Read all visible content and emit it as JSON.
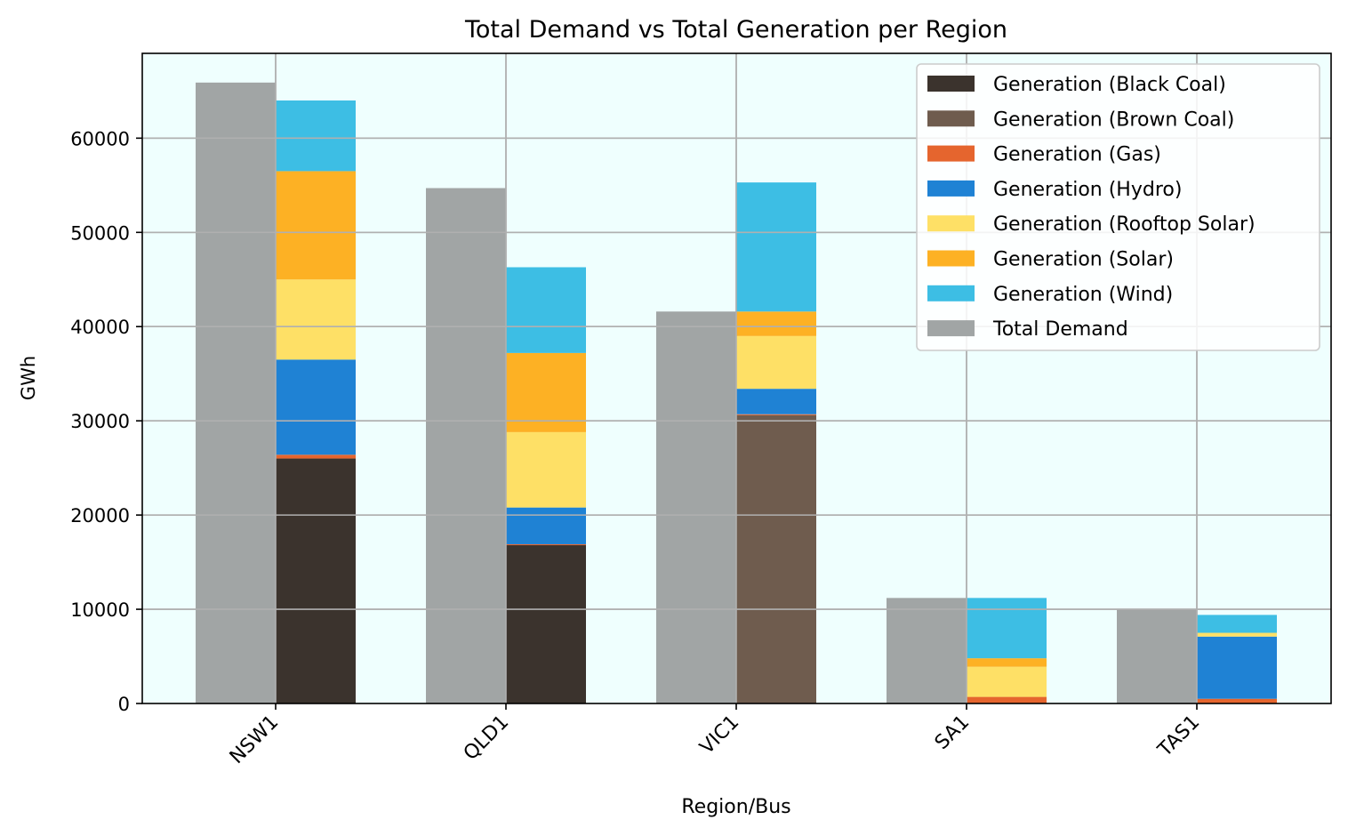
{
  "chart_data": {
    "type": "bar",
    "title": "Total Demand vs Total Generation per Region",
    "xlabel": "Region/Bus",
    "ylabel": "GWh",
    "ylim": [
      0,
      69000
    ],
    "yticks": [
      0,
      10000,
      20000,
      30000,
      40000,
      50000,
      60000
    ],
    "grid": true,
    "legend_position": "top-right",
    "categories": [
      "NSW1",
      "QLD1",
      "VIC1",
      "SA1",
      "TAS1"
    ],
    "demand": {
      "name": "Total Demand",
      "color": "#a1a5a5",
      "values": [
        65900,
        54700,
        41600,
        11200,
        10000
      ]
    },
    "generation_series": [
      {
        "name": "Generation (Black Coal)",
        "color": "#3b332d",
        "values": [
          26000,
          16800,
          0,
          0,
          0
        ]
      },
      {
        "name": "Generation (Brown Coal)",
        "color": "#6f5c4e",
        "values": [
          0,
          0,
          30600,
          0,
          0
        ]
      },
      {
        "name": "Generation (Gas)",
        "color": "#e5652e",
        "values": [
          400,
          100,
          100,
          700,
          500
        ]
      },
      {
        "name": "Generation (Hydro)",
        "color": "#1f82d4",
        "values": [
          10100,
          3900,
          2700,
          0,
          6600
        ]
      },
      {
        "name": "Generation (Rooftop Solar)",
        "color": "#fee066",
        "values": [
          8500,
          8000,
          5600,
          3200,
          400
        ]
      },
      {
        "name": "Generation (Solar)",
        "color": "#fdb124",
        "values": [
          11500,
          8400,
          2600,
          900,
          0
        ]
      },
      {
        "name": "Generation (Wind)",
        "color": "#3dbee4",
        "values": [
          7500,
          9100,
          13700,
          6400,
          1900
        ]
      }
    ],
    "legend": [
      "Generation (Black Coal)",
      "Generation (Brown Coal)",
      "Generation (Gas)",
      "Generation (Hydro)",
      "Generation (Rooftop Solar)",
      "Generation (Solar)",
      "Generation (Wind)",
      "Total Demand"
    ],
    "colors": {
      "plot_background": "#effffe",
      "grid": "#b0b0b0",
      "axes": "#000000"
    }
  }
}
